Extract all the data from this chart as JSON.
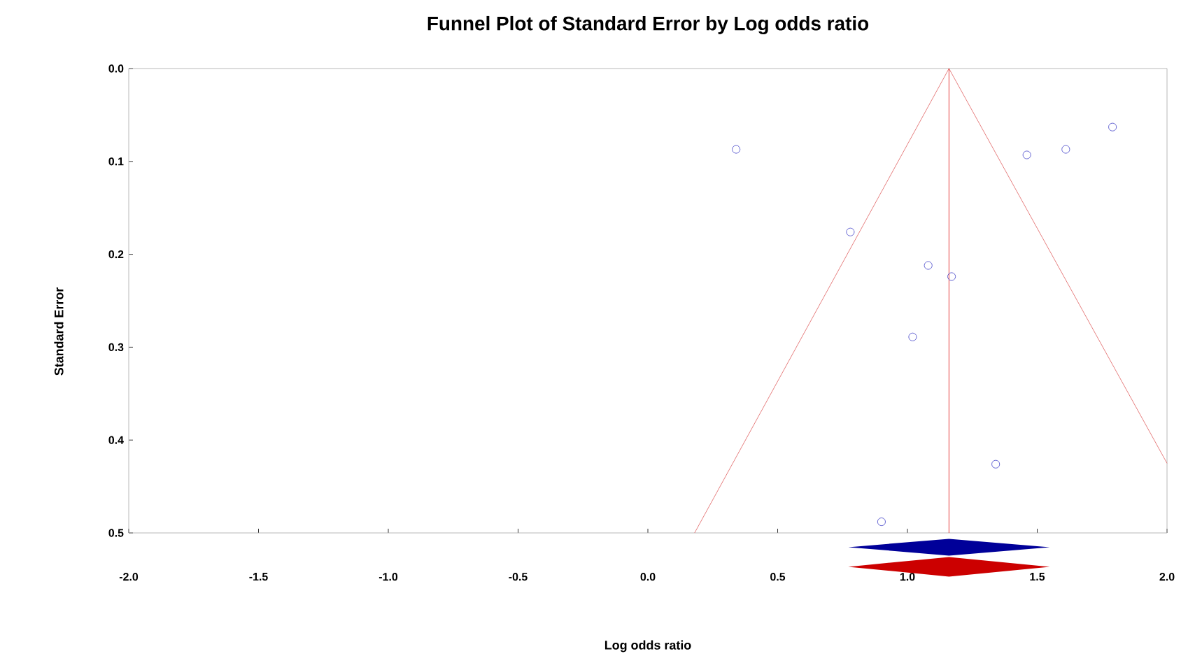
{
  "chart_data": {
    "type": "scatter",
    "title": "Funnel Plot of Standard Error by Log odds ratio",
    "xlabel": "Log odds ratio",
    "ylabel": "Standard Error",
    "xlim": [
      -2.0,
      2.0
    ],
    "ylim": [
      0.5,
      0.0
    ],
    "xticks": [
      {
        "value": -2.0,
        "label": "-2.0"
      },
      {
        "value": -1.5,
        "label": "-1.5"
      },
      {
        "value": -1.0,
        "label": "-1.0"
      },
      {
        "value": -0.5,
        "label": "-0.5"
      },
      {
        "value": 0.0,
        "label": "0.0"
      },
      {
        "value": 0.5,
        "label": "0.5"
      },
      {
        "value": 1.0,
        "label": "1.0"
      },
      {
        "value": 1.5,
        "label": "1.5"
      },
      {
        "value": 2.0,
        "label": "2.0"
      }
    ],
    "yticks": [
      {
        "value": 0.0,
        "label": "0.0"
      },
      {
        "value": 0.1,
        "label": "0.1"
      },
      {
        "value": 0.2,
        "label": "0.2"
      },
      {
        "value": 0.3,
        "label": "0.3"
      },
      {
        "value": 0.4,
        "label": "0.4"
      },
      {
        "value": 0.5,
        "label": "0.5"
      }
    ],
    "marker": "circle",
    "grid": false,
    "ref_lines": [
      {
        "axis": "x",
        "value": 1.16,
        "color": "#e01010"
      }
    ],
    "series": [
      {
        "color": "#4040c8",
        "x": [
          0.34,
          0.78,
          1.08,
          1.17,
          1.02,
          1.46,
          1.61,
          1.79,
          1.34,
          0.9
        ],
        "values": [
          0.087,
          0.176,
          0.212,
          0.224,
          0.289,
          0.093,
          0.087,
          0.063,
          0.426,
          0.488
        ]
      },
      {
        "type": "line",
        "color": "#e06060",
        "marker": "none",
        "x": [
          0.18,
          1.16,
          2.0
        ],
        "values": [
          0.5,
          0.0,
          0.425
        ]
      }
    ]
  }
}
